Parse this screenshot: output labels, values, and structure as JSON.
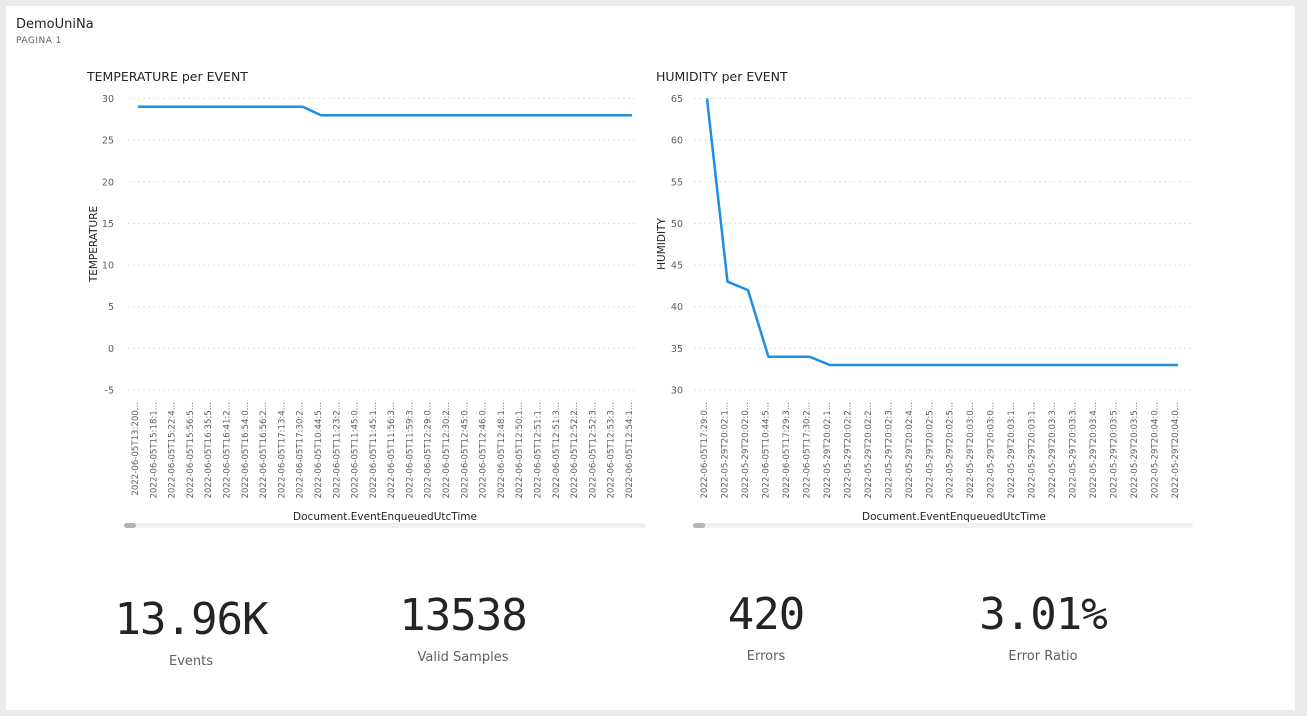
{
  "report": {
    "title": "DemoUniNa",
    "page": "PAGINA 1"
  },
  "chart_data": [
    {
      "type": "line",
      "title": "TEMPERATURE per EVENT",
      "xlabel": "Document.EventEnqueuedUtcTime",
      "ylabel": "TEMPERATURE",
      "ylim": [
        -5,
        30
      ],
      "yticks": [
        30,
        25,
        20,
        15,
        10,
        5,
        0,
        -5
      ],
      "grid": true,
      "categories": [
        "2022-06-05T13:200...",
        "2022-06-05T15:18:1...",
        "2022-06-05T15:22:4...",
        "2022-06-05T15:56:5...",
        "2022-06-05T16:35:5...",
        "2022-06-05T16:41:2...",
        "2022-06-05T16:54:0...",
        "2022-06-05T16:56:2...",
        "2022-06-05T17:13:4...",
        "2022-06-05T17:30:2...",
        "2022-06-05T10:44:5...",
        "2022-06-05T11:23:2...",
        "2022-06-05T11:45:0...",
        "2022-06-05T11:45:1...",
        "2022-06-05T11:56:3...",
        "2022-06-05T11:59:3...",
        "2022-06-05T12:29:0...",
        "2022-06-05T12:30:2...",
        "2022-06-05T12:45:0...",
        "2022-06-05T12:46:0...",
        "2022-06-05T12:48:1...",
        "2022-06-05T12:50:1...",
        "2022-06-05T12:51:1...",
        "2022-06-05T12:51:3...",
        "2022-06-05T12:52:2...",
        "2022-06-05T12:52:3...",
        "2022-06-05T12:53:3...",
        "2022-06-05T12:54:1..."
      ],
      "values": [
        29,
        29,
        29,
        29,
        29,
        29,
        29,
        29,
        29,
        29,
        28,
        28,
        28,
        28,
        28,
        28,
        28,
        28,
        28,
        28,
        28,
        28,
        28,
        28,
        28,
        28,
        28,
        28
      ]
    },
    {
      "type": "line",
      "title": "HUMIDITY per EVENT",
      "xlabel": "Document.EventEnqueuedUtcTime",
      "ylabel": "HUMIDITY",
      "ylim": [
        30,
        65
      ],
      "yticks": [
        65,
        60,
        55,
        50,
        45,
        40,
        35,
        30
      ],
      "grid": true,
      "categories": [
        "2022-06-05T17:29:0...",
        "2022-05-29T20:02:1...",
        "2022-05-29T20:02:0...",
        "2022-06-05T10:44:5...",
        "2022-06-05T17:29:3...",
        "2022-06-05T17:30:2...",
        "2022-05-29T20:02:1...",
        "2022-05-29T20:02:2...",
        "2022-05-29T20:02:2...",
        "2022-05-29T20:02:3...",
        "2022-05-29T20:02:4...",
        "2022-05-29T20:02:5...",
        "2022-05-29T20:02:5...",
        "2022-05-29T20:03:0...",
        "2022-05-29T20:03:0...",
        "2022-05-29T20:03:1...",
        "2022-05-29T20:03:1...",
        "2022-05-29T20:03:3...",
        "2022-05-29T20:03:3...",
        "2022-05-29T20:03:4...",
        "2022-05-29T20:03:5...",
        "2022-05-29T20:03:5...",
        "2022-05-29T20:04:0...",
        "2022-05-29T20:04:0..."
      ],
      "values": [
        65,
        43,
        42,
        34,
        34,
        34,
        33,
        33,
        33,
        33,
        33,
        33,
        33,
        33,
        33,
        33,
        33,
        33,
        33,
        33,
        33,
        33,
        33,
        33
      ]
    }
  ],
  "kpis": [
    {
      "value": "13.96K",
      "label": "Events"
    },
    {
      "value": "13538",
      "label": "Valid Samples"
    },
    {
      "value": "420",
      "label": "Errors"
    },
    {
      "value": "3.01%",
      "label": "Error Ratio"
    }
  ],
  "colors": {
    "series": "#1f8fe0",
    "grid": "#e1e1e1"
  }
}
